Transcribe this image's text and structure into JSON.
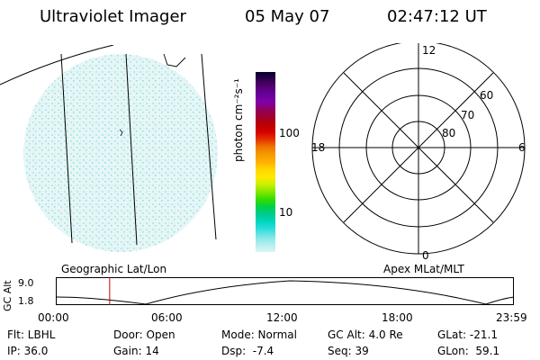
{
  "header": {
    "title": "Ultraviolet Imager",
    "date": "05 May 07",
    "time": "02:47:12 UT"
  },
  "colorbar": {
    "label": "photon cm⁻²s⁻¹",
    "ticks": [
      "100",
      "10"
    ],
    "colors": [
      "#000033",
      "#33004d",
      "#550077",
      "#6a0099",
      "#8000aa",
      "#900060",
      "#a00030",
      "#bb0000",
      "#d40000",
      "#e53300",
      "#ee7700",
      "#f59a00",
      "#ffb000",
      "#ffd700",
      "#ffe800",
      "#ccf000",
      "#80e600",
      "#33dd00",
      "#00d04a",
      "#00cc90",
      "#00d6c0",
      "#33dddd",
      "#80e6e6",
      "#b3eeee",
      "#d9f5f5"
    ]
  },
  "polar": {
    "mlt_labels": {
      "top": "12",
      "left": "18",
      "right": "6",
      "bottom": "0"
    },
    "lat_labels": [
      "60",
      "70",
      "80"
    ]
  },
  "panel_labels": {
    "left": "Geographic Lat/Lon",
    "right": "Apex MLat/MLT"
  },
  "altitude_plot": {
    "ylabel": "GC Alt",
    "yticks": [
      "9.0",
      "1.8"
    ],
    "xticks": [
      "00:00",
      "06:00",
      "12:00",
      "18:00",
      "23:59"
    ],
    "marker_time_hours": 2.786,
    "marker_color": "#cc0000"
  },
  "info": {
    "row1": {
      "flt": "Flt: LBHL",
      "door": "Door: Open",
      "mode": "Mode: Normal",
      "gcalt": "GC Alt: 4.0 Re",
      "glat": "GLat: -21.1"
    },
    "row2": {
      "ip": "IP: 36.0",
      "gain": "Gain: 14",
      "dsp": "Dsp:  -7.4",
      "seq": "Seq: 39",
      "glon": "GLon:  59.1"
    }
  }
}
